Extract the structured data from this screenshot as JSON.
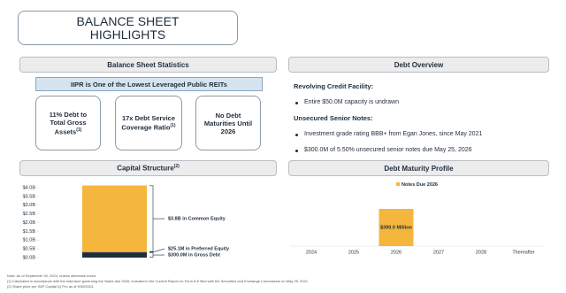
{
  "title_lines": [
    "BALANCE SHEET",
    "HIGHLIGHTS"
  ],
  "left": {
    "heading": "Balance Sheet Statistics",
    "callout": "IIPR is One of the Lowest Leveraged Public REITs",
    "stats": [
      {
        "text": "11% Debt to Total Gross Assets",
        "sup": "(1)"
      },
      {
        "text": "17x Debt Service Coverage Ratio",
        "sup": "(1)"
      },
      {
        "text": "No Debt Maturities Until 2026"
      }
    ]
  },
  "debt_overview": {
    "heading": "Debt Overview",
    "groups": [
      {
        "label": "Revolving Credit Facility:",
        "bullets": [
          "Entire $50.0M capacity is undrawn"
        ]
      },
      {
        "label": "Unsecured Senior Notes:",
        "bullets": [
          "Investment grade rating BBB+ from Egan Jones, since May 2021",
          "$300.0M of 5.50% unsecured senior notes due May 25, 2026"
        ]
      }
    ]
  },
  "chart_data": [
    {
      "type": "stacked_bar",
      "title": "Capital Structure",
      "title_sup": "(2)",
      "values": [
        0.3,
        0.0251,
        3.8
      ],
      "value_labels": [
        "$300.0M in Gross Debt",
        "$25.1M in Preferred Equity",
        "$3.8B in Common Equity"
      ],
      "colors": [
        "#1e2d3d",
        "#6d7a86",
        "#f4b63c"
      ],
      "ylim": [
        0,
        4
      ],
      "yticks": [
        {
          "value": 0,
          "label": "$0.0B"
        },
        {
          "value": 0.5,
          "label": "$0.5B"
        },
        {
          "value": 1,
          "label": "$1.0B"
        },
        {
          "value": 1.5,
          "label": "$1.5B"
        },
        {
          "value": 2,
          "label": "$2.0B"
        },
        {
          "value": 2.5,
          "label": "$2.5B"
        },
        {
          "value": 3,
          "label": "$3.0B"
        },
        {
          "value": 3.5,
          "label": "$3.5B"
        },
        {
          "value": 4,
          "label": "$4.0B"
        }
      ]
    },
    {
      "type": "bar",
      "title": "Debt Maturity Profile",
      "categories": [
        "2024",
        "2025",
        "2026",
        "2027",
        "2028",
        "Thereafter"
      ],
      "series": [
        {
          "name": "Notes Due 2026",
          "color": "#f4b63c",
          "values": [
            0,
            0,
            300,
            0,
            0,
            0
          ],
          "value_labels": [
            null,
            null,
            "$300.0 Million",
            null,
            null,
            null
          ]
        }
      ]
    }
  ],
  "footnotes": [
    "Note: As of September 30, 2024, unless otherwise noted.",
    "(1)   Calculated in accordance with the indenture governing the Notes due 2026, included in the Current Report on Form 8-K filed with the Securities and Exchange Commission on May 25, 2021.",
    "(2)   Share price per S&P Capital IQ Pro as of 9/30/2024."
  ]
}
